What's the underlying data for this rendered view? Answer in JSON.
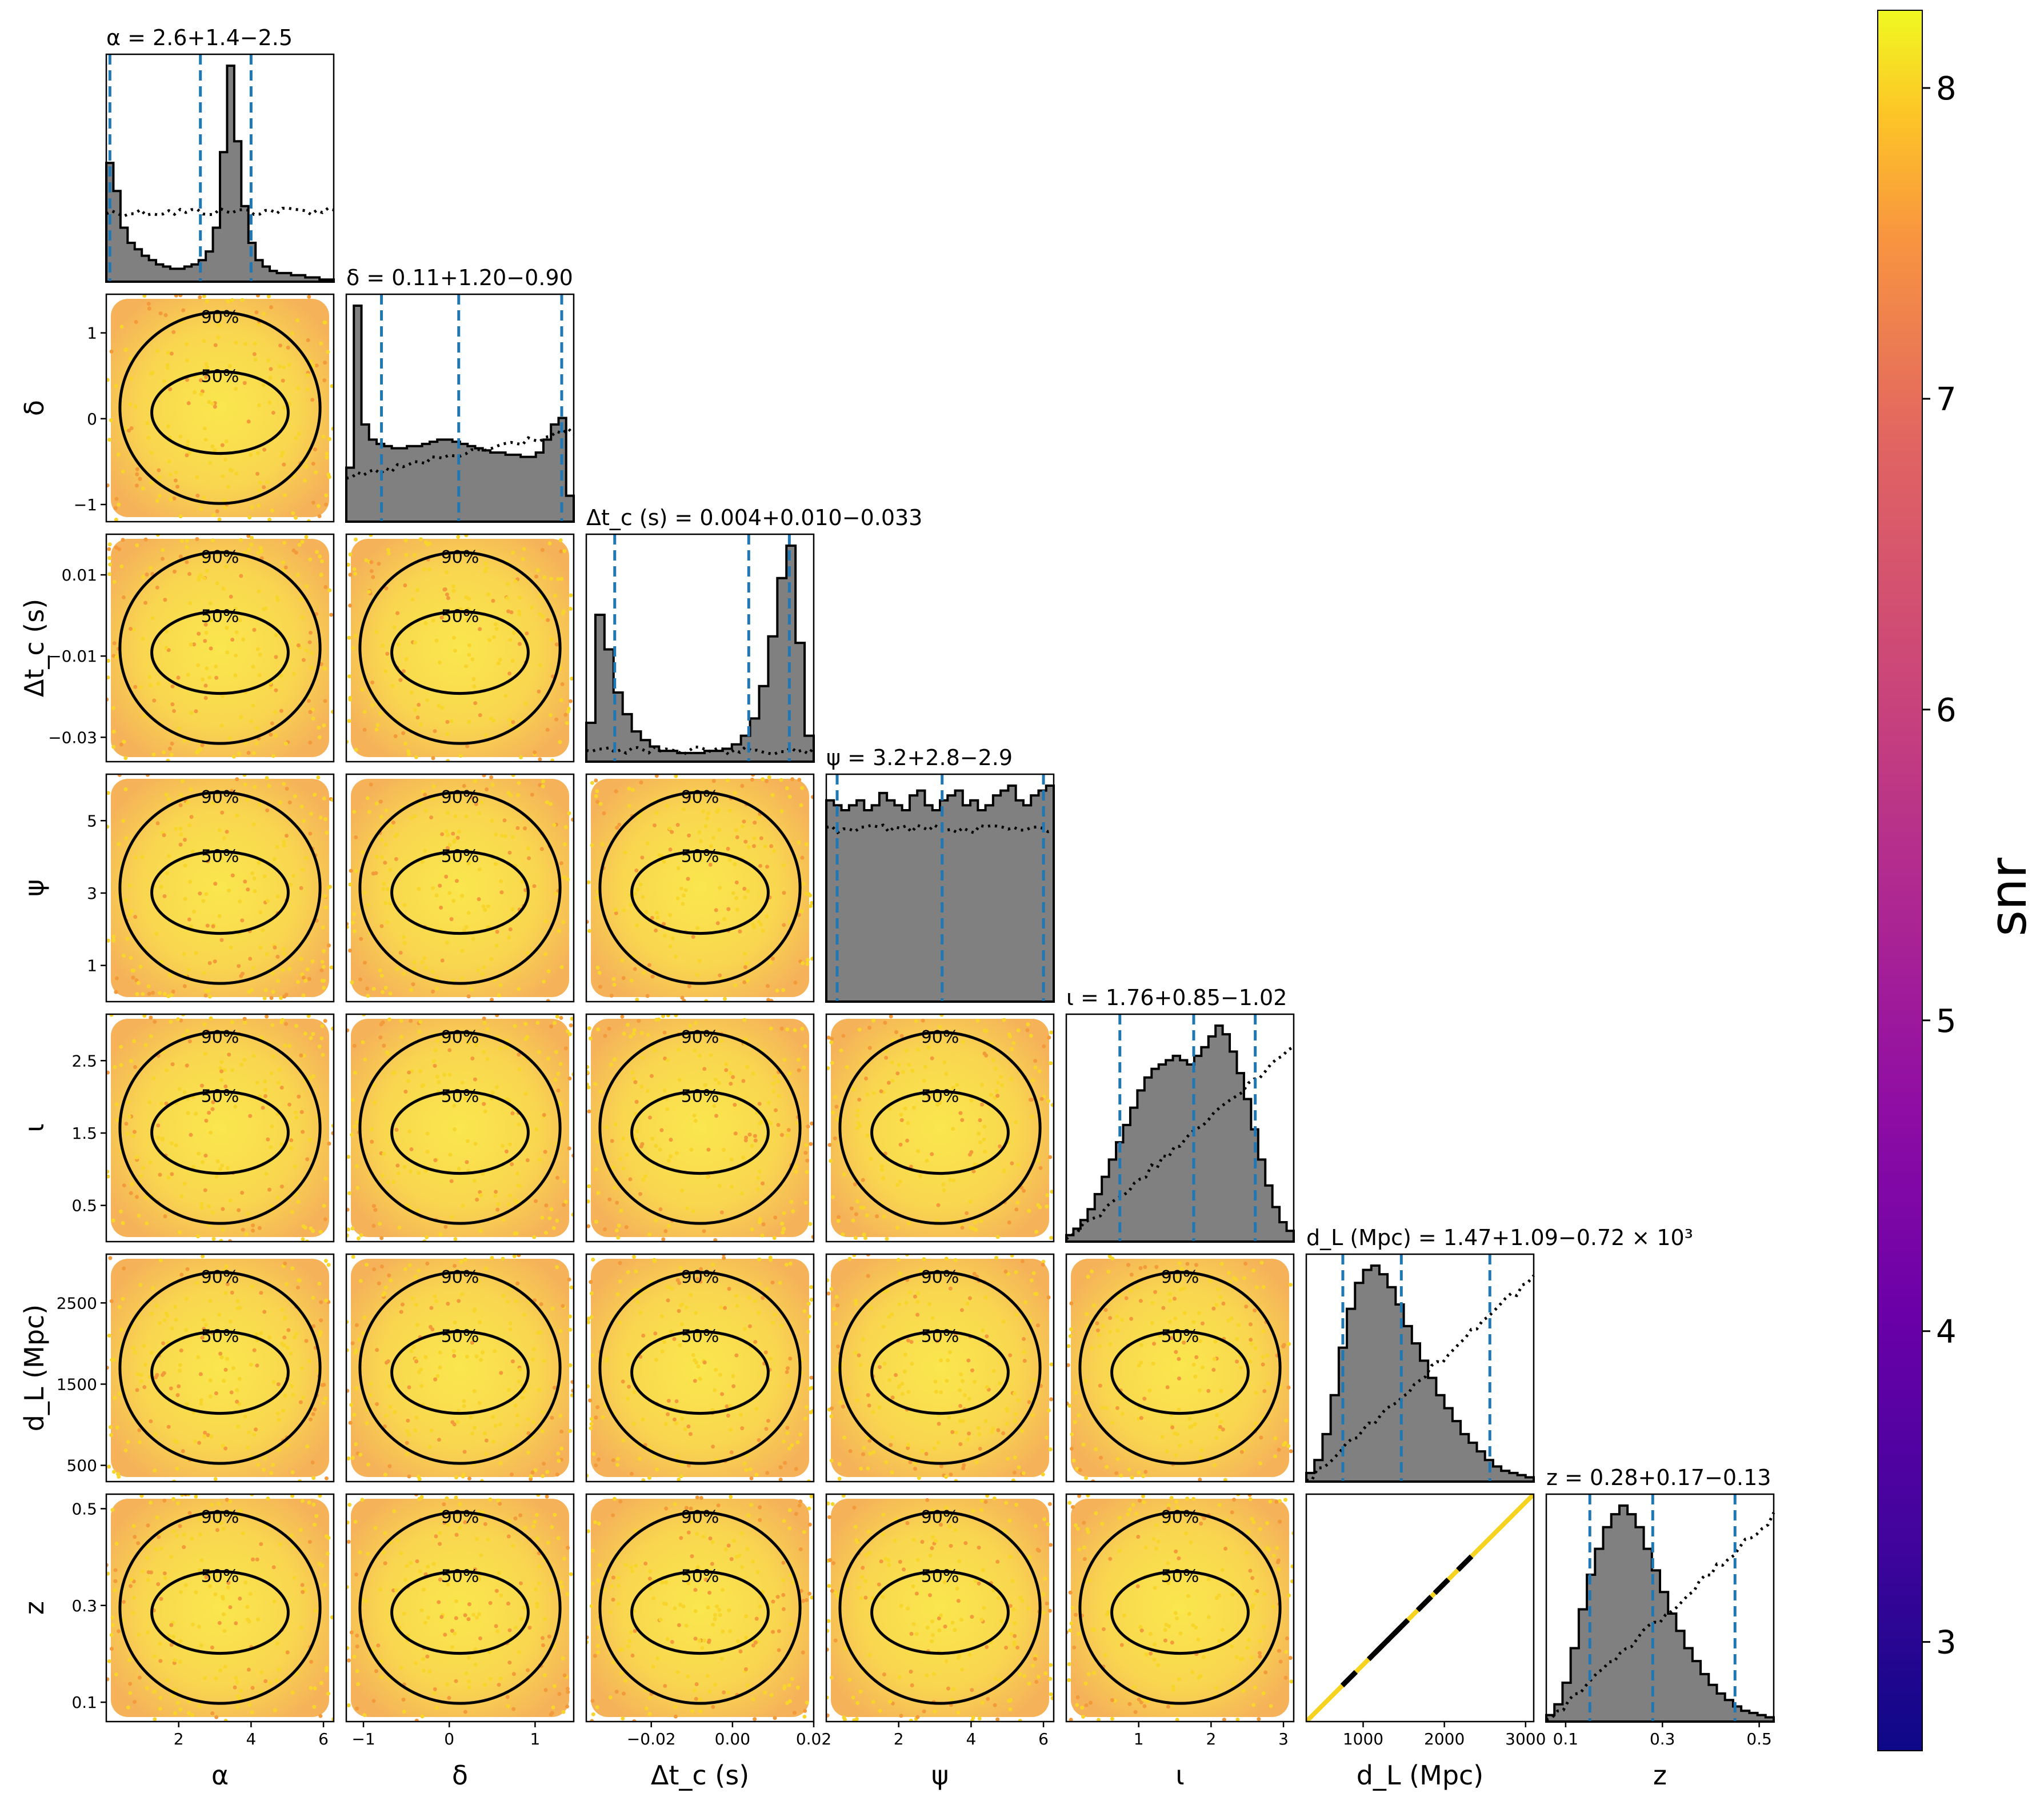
{
  "chart_data": {
    "type": "corner",
    "parameters": [
      {
        "key": "alpha",
        "label": "α",
        "range": [
          0.0,
          6.283
        ],
        "ticks": [
          2,
          4,
          6
        ],
        "tick_labels": [
          "2",
          "4",
          "6"
        ],
        "title": "α = 2.6+1.4−2.5",
        "median": 2.6,
        "lo": 0.1,
        "hi": 4.0
      },
      {
        "key": "delta",
        "label": "δ",
        "range": [
          -1.2,
          1.45
        ],
        "ticks": [
          -1,
          0,
          1
        ],
        "tick_labels": [
          "−1",
          "0",
          "1"
        ],
        "title": "δ = 0.11+1.20−0.90",
        "median": 0.11,
        "lo": -0.79,
        "hi": 1.31
      },
      {
        "key": "dtc",
        "label": "Δt_c (s)",
        "range": [
          -0.036,
          0.02
        ],
        "ticks": [
          -0.03,
          -0.01,
          0.01
        ],
        "tick_labels": [
          "−0.03",
          "−0.01",
          "0.01"
        ],
        "xticks": [
          -0.02,
          0.0,
          0.02
        ],
        "xtick_labels": [
          "−0.02",
          "0.00",
          "0.02"
        ],
        "title": "Δt_c (s) = 0.004+0.010−0.033",
        "median": 0.004,
        "lo": -0.029,
        "hi": 0.014
      },
      {
        "key": "psi",
        "label": "ψ",
        "range": [
          0.0,
          6.283
        ],
        "ticks": [
          1,
          3,
          5
        ],
        "tick_labels": [
          "1",
          "3",
          "5"
        ],
        "xticks": [
          2,
          4,
          6
        ],
        "xtick_labels": [
          "2",
          "4",
          "6"
        ],
        "title": "ψ = 3.2+2.8−2.9",
        "median": 3.2,
        "lo": 0.3,
        "hi": 6.0
      },
      {
        "key": "iota",
        "label": "ι",
        "range": [
          0.0,
          3.14159
        ],
        "ticks": [
          0.5,
          1.5,
          2.5
        ],
        "tick_labels": [
          "0.5",
          "1.5",
          "2.5"
        ],
        "xticks": [
          1,
          2,
          3
        ],
        "xtick_labels": [
          "1",
          "2",
          "3"
        ],
        "title": "ι = 1.76+0.85−1.02",
        "median": 1.76,
        "lo": 0.74,
        "hi": 2.61
      },
      {
        "key": "dL",
        "label": "d_L (Mpc)",
        "range": [
          300,
          3100
        ],
        "ticks": [
          500,
          1500,
          2500
        ],
        "tick_labels": [
          "500",
          "1500",
          "2500"
        ],
        "xticks": [
          1000,
          2000,
          3000
        ],
        "xtick_labels": [
          "1000",
          "2000",
          "3000"
        ],
        "title": "d_L (Mpc) = 1.47+1.09−0.72 × 10³",
        "median": 1470,
        "lo": 750,
        "hi": 2560
      },
      {
        "key": "z",
        "label": "z",
        "range": [
          0.06,
          0.53
        ],
        "ticks": [
          0.1,
          0.3,
          0.5
        ],
        "tick_labels": [
          "0.1",
          "0.3",
          "0.5"
        ],
        "xticks": [
          0.1,
          0.3,
          0.5
        ],
        "xtick_labels": [
          "0.1",
          "0.3",
          "0.5"
        ],
        "title": "z = 0.28+0.17−0.13",
        "median": 0.28,
        "lo": 0.15,
        "hi": 0.45
      }
    ],
    "histograms": {
      "alpha": [
        55,
        42,
        25,
        18,
        15,
        12,
        10,
        8,
        7,
        6,
        6,
        7,
        8,
        10,
        14,
        25,
        60,
        100,
        65,
        35,
        18,
        10,
        7,
        5,
        4,
        4,
        3,
        3,
        2,
        2,
        1,
        1
      ],
      "delta": [
        25,
        100,
        45,
        38,
        36,
        35,
        34,
        34,
        35,
        35,
        36,
        37,
        38,
        38,
        37,
        36,
        35,
        34,
        33,
        32,
        32,
        31,
        31,
        30,
        30,
        32,
        38,
        45,
        48,
        12
      ],
      "dtc": [
        18,
        68,
        52,
        32,
        22,
        14,
        10,
        7,
        5,
        5,
        4,
        4,
        4,
        5,
        5,
        6,
        8,
        12,
        20,
        35,
        58,
        85,
        100,
        55,
        12
      ],
      "psi": [
        82,
        80,
        78,
        80,
        82,
        78,
        80,
        85,
        82,
        80,
        78,
        84,
        86,
        80,
        78,
        82,
        84,
        86,
        80,
        82,
        78,
        80,
        84,
        86,
        88,
        82,
        80,
        84,
        86,
        88
      ],
      "iota": [
        3,
        6,
        10,
        15,
        22,
        30,
        38,
        46,
        54,
        62,
        70,
        76,
        80,
        82,
        84,
        86,
        84,
        82,
        86,
        90,
        95,
        100,
        96,
        88,
        78,
        66,
        52,
        38,
        26,
        16,
        9,
        5
      ],
      "dL": [
        4,
        10,
        22,
        40,
        62,
        80,
        92,
        98,
        100,
        96,
        90,
        82,
        72,
        64,
        56,
        48,
        40,
        34,
        28,
        22,
        18,
        14,
        10,
        7,
        5,
        4,
        3,
        2
      ],
      "z": [
        3,
        8,
        18,
        34,
        52,
        68,
        80,
        90,
        96,
        100,
        96,
        90,
        80,
        70,
        60,
        50,
        42,
        34,
        28,
        22,
        17,
        13,
        10,
        7,
        5,
        4,
        3,
        2
      ]
    },
    "prior_fraction": {
      "alpha": [
        0.32,
        0.33
      ],
      "delta": [
        0.2,
        0.42
      ],
      "dtc": [
        0.05,
        0.05
      ],
      "psi": [
        0.8,
        0.8
      ],
      "iota": [
        0.0,
        0.9
      ],
      "dL": [
        0.0,
        0.95
      ],
      "z": [
        0.0,
        0.95
      ]
    },
    "contour_levels": [
      "50%",
      "90%"
    ],
    "colorbar": {
      "label": "snr",
      "min": 2.65,
      "max": 8.25,
      "ticks": [
        3,
        4,
        5,
        6,
        7,
        8
      ],
      "tick_labels": [
        "3",
        "4",
        "5",
        "6",
        "7",
        "8"
      ],
      "colormap": "plasma"
    },
    "colors": {
      "histogram_fill": "#808080",
      "quantile_line": "#1f77b4",
      "contour": "#000000",
      "scatter_main": "#f8d52a",
      "scatter_edge": "#f39a3a"
    }
  }
}
